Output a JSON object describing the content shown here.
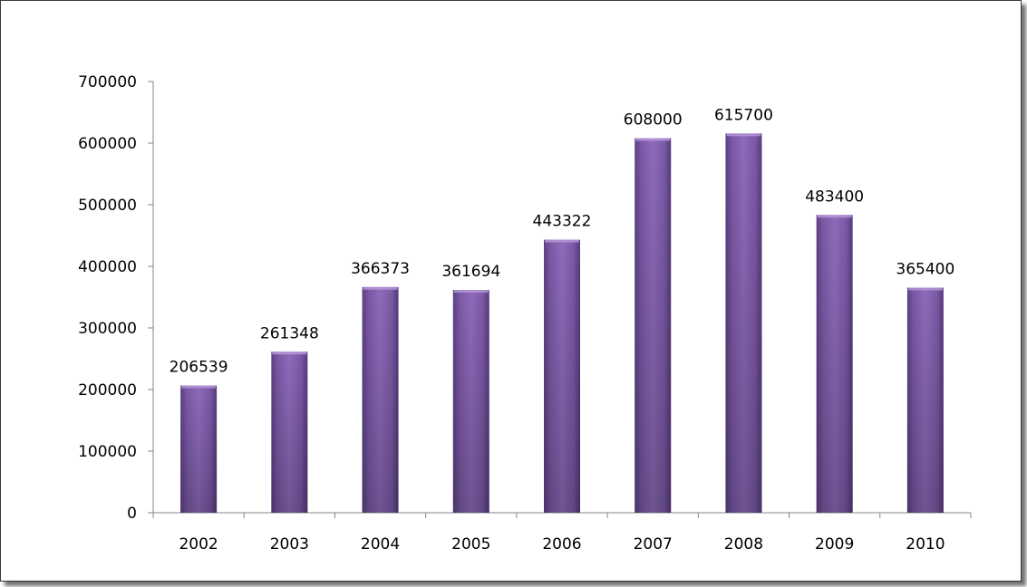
{
  "chart_data": {
    "type": "bar",
    "title": "",
    "xlabel": "",
    "ylabel": "",
    "categories": [
      "2002",
      "2003",
      "2004",
      "2005",
      "2006",
      "2007",
      "2008",
      "2009",
      "2010"
    ],
    "values": [
      206539,
      261348,
      366373,
      361694,
      443322,
      608000,
      615700,
      483400,
      365400
    ],
    "data_labels": [
      "206539",
      "261348",
      "366373",
      "361694",
      "443322",
      "608000",
      "615700",
      "483400",
      "365400"
    ],
    "yticks": [
      "0",
      "100000",
      "200000",
      "300000",
      "400000",
      "500000",
      "600000",
      "700000"
    ],
    "ylim": [
      0,
      700000
    ],
    "grid": false,
    "legend": "none",
    "bar_color": "#7b5aa6"
  }
}
